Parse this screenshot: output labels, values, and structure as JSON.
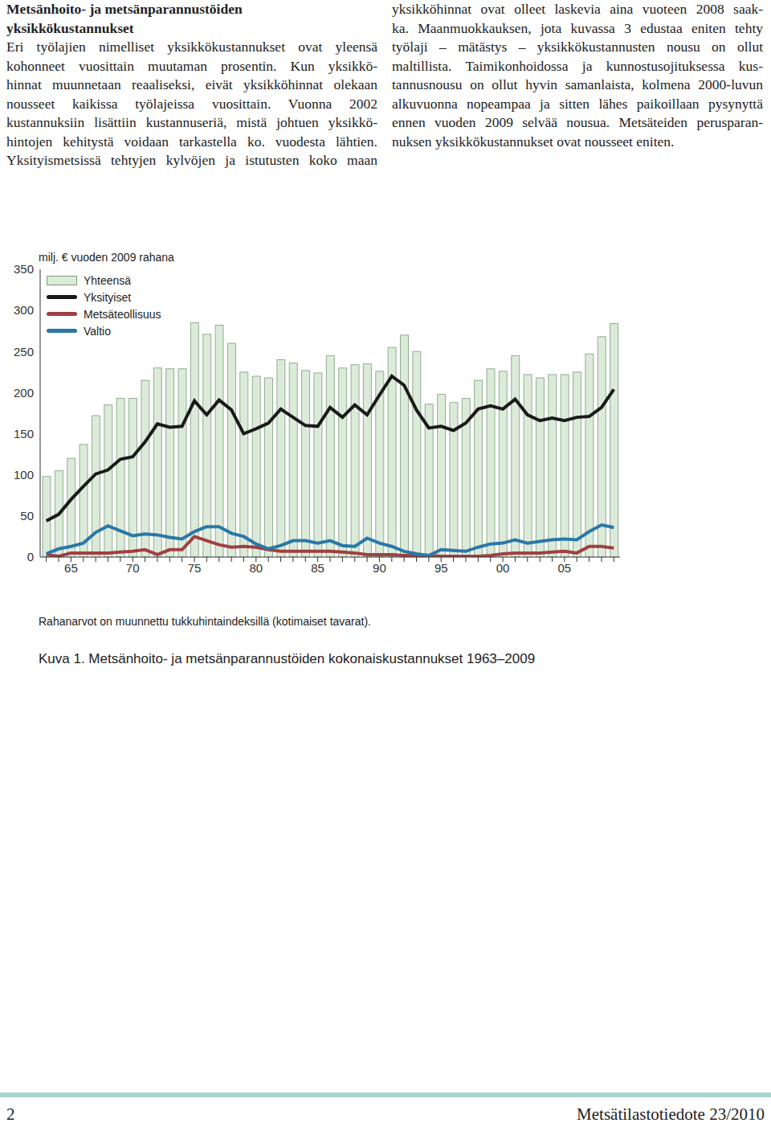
{
  "heading": [
    "Metsänhoito- ja metsänparannustöiden",
    "yksikkökustannukset"
  ],
  "columns": [
    [
      "Eri työlajien nimelliset yksikkökustannukset ovat yleensä",
      "kohonneet vuosittain muutaman prosentin. Kun yksikkö-",
      "hinnat muunnetaan reaaliseksi, eivät yksikköhinnat olekaan",
      "nousseet kaikissa työlajeissa vuosittain. Vuonna 2002",
      "kustannuksiin lisättiin kustannuseriä, mistä johtuen yksikkö-",
      "hintojen kehitystä voidaan tarkastella ko. vuodesta lähtien.",
      "Yksityismetsissä tehtyjen kylvöjen ja istutusten koko maan"
    ],
    [
      "yksikköhinnat ovat olleet laskevia aina vuoteen 2008 saak-",
      "ka. Maanmuokkauksen, jota kuvassa 3 edustaa eniten tehty",
      "työlaji – mätästys – yksikkökustannusten nousu on ollut",
      "maltillista. Taimikonhoidossa ja kunnostusojituksessa kus-",
      "tannusnousu on ollut hyvin samanlaista, kolmena 2000-luvun",
      "alkuvuonna nopeampaa ja sitten lähes paikoillaan pysynyttä",
      "ennen vuoden 2009 selvää nousua. Metsäteiden perusparan-",
      "nuksen yksikkökustannukset ovat nousseet eniten."
    ]
  ],
  "chart_data": {
    "type": "bar",
    "y_label": "milj. € vuoden 2009 rahana",
    "categories": [
      null,
      null,
      "65",
      null,
      null,
      null,
      null,
      "70",
      null,
      null,
      null,
      null,
      "75",
      null,
      null,
      null,
      null,
      "80",
      null,
      null,
      null,
      null,
      "85",
      null,
      null,
      null,
      null,
      "90",
      null,
      null,
      null,
      null,
      "95",
      null,
      null,
      null,
      null,
      "00",
      null,
      null,
      null,
      null,
      "05",
      null,
      null,
      null,
      null
    ],
    "series": [
      {
        "name": "Yhteensä",
        "type": "bar",
        "color": "#dcebd9",
        "values": [
          98,
          105,
          120,
          137,
          172,
          185,
          193,
          193,
          215,
          230,
          229,
          229,
          285,
          271,
          282,
          260,
          225,
          220,
          218,
          240,
          236,
          227,
          224,
          245,
          230,
          234,
          235,
          226,
          255,
          270,
          250,
          186,
          198,
          188,
          193,
          215,
          229,
          226,
          245,
          222,
          218,
          222,
          222,
          225,
          247,
          268,
          284
        ]
      },
      {
        "name": "Yksityiset",
        "type": "line",
        "color": "#1a1a1a",
        "values": [
          44,
          52,
          70,
          86,
          101,
          106,
          119,
          122,
          140,
          162,
          158,
          159,
          190,
          173,
          191,
          179,
          150,
          156,
          163,
          180,
          170,
          160,
          159,
          182,
          170,
          185,
          173,
          197,
          220,
          209,
          179,
          157,
          159,
          154,
          163,
          180,
          184,
          180,
          192,
          173,
          166,
          169,
          166,
          170,
          171,
          182,
          204
        ]
      },
      {
        "name": "Metsäteollisuus",
        "type": "line",
        "color": "#a04040",
        "values": [
          3,
          1,
          5,
          5,
          5,
          5,
          6,
          7,
          9,
          3,
          9,
          9,
          25,
          20,
          15,
          12,
          13,
          12,
          9,
          7,
          7,
          7,
          7,
          7,
          6,
          5,
          3,
          3,
          3,
          2,
          2,
          2,
          1,
          1,
          1,
          1,
          2,
          4,
          5,
          5,
          5,
          6,
          7,
          5,
          13,
          13,
          11
        ]
      },
      {
        "name": "Valtio",
        "type": "line",
        "color": "#2a78a8",
        "values": [
          4,
          10,
          13,
          17,
          30,
          38,
          32,
          26,
          28,
          27,
          24,
          22,
          31,
          37,
          37,
          29,
          25,
          16,
          10,
          14,
          20,
          20,
          17,
          20,
          14,
          13,
          23,
          17,
          13,
          7,
          4,
          2,
          9,
          8,
          7,
          12,
          16,
          17,
          21,
          17,
          19,
          21,
          22,
          21,
          31,
          39,
          36
        ]
      }
    ],
    "ylim": [
      0,
      350
    ],
    "yticks": [
      0,
      50,
      100,
      150,
      200,
      250,
      300,
      350
    ],
    "grid": false
  },
  "note": "Rahanarvot on muunnettu tukkuhintaindeksillä (kotimaiset tavarat).",
  "caption": "Kuva 1. Metsänhoito- ja metsänparannustöiden kokonaiskustannukset 1963–2009",
  "footer": {
    "page": "2",
    "publication": "Metsätilastotiedote 23/2010"
  }
}
